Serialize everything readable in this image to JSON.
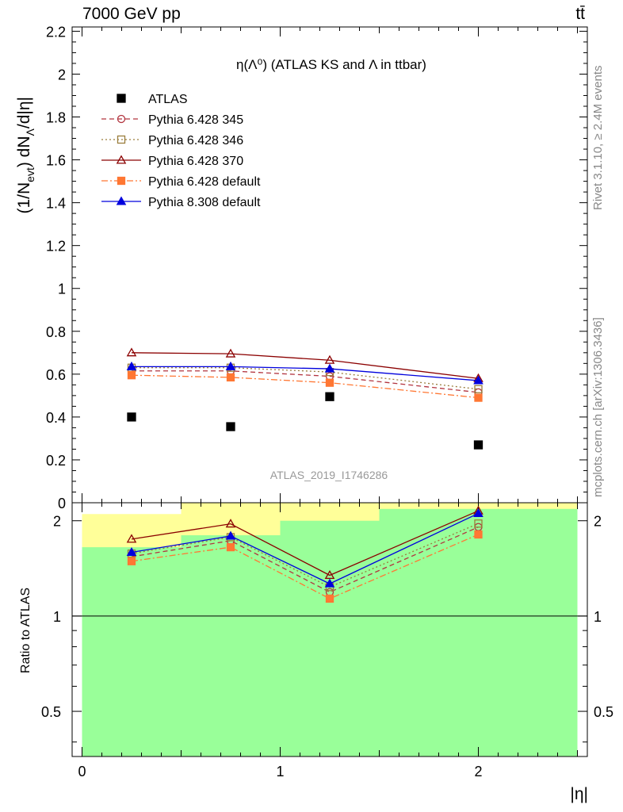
{
  "header": {
    "left": "7000 GeV pp",
    "right": "tt̄"
  },
  "side": {
    "rivet": "Rivet 3.1.10, ≥ 2.4M events",
    "source": "mcplots.cern.ch [arXiv:1306.3436]"
  },
  "chart_data": [
    {
      "type": "scatter",
      "title": "η(Λ⁰) (ATLAS KS and Λ in ttbar)",
      "ylabel": "(1/N_evt) dN_Λ/d|η|",
      "xlabel": "",
      "watermark": "ATLAS_2019_I1746286",
      "xlim": [
        -0.05,
        2.55
      ],
      "ylim": [
        0,
        2.22
      ],
      "yticks": [
        "0",
        "0.2",
        "0.4",
        "0.6",
        "0.8",
        "1",
        "1.2",
        "1.4",
        "1.6",
        "1.8",
        "2",
        "2.2"
      ],
      "x": [
        0.25,
        0.75,
        1.25,
        2.0
      ],
      "series": [
        {
          "name": "ATLAS",
          "values": [
            0.4,
            0.355,
            0.495,
            0.27
          ],
          "color": "#000000",
          "marker": "square-filled",
          "line": "none"
        },
        {
          "name": "Pythia 6.428 345",
          "values": [
            0.615,
            0.615,
            0.59,
            0.515
          ],
          "color": "#b2343f",
          "marker": "circle-open",
          "line": "dashed"
        },
        {
          "name": "Pythia 6.428 346",
          "values": [
            0.63,
            0.63,
            0.61,
            0.53
          ],
          "color": "#9a7d3c",
          "marker": "square-open",
          "line": "dotted"
        },
        {
          "name": "Pythia 6.428 370",
          "values": [
            0.7,
            0.695,
            0.665,
            0.58
          ],
          "color": "#8b0000",
          "marker": "triangle-open",
          "line": "solid"
        },
        {
          "name": "Pythia 6.428 default",
          "values": [
            0.595,
            0.585,
            0.56,
            0.49
          ],
          "color": "#ff7733",
          "marker": "square-filled",
          "line": "dashdot"
        },
        {
          "name": "Pythia 8.308 default",
          "values": [
            0.635,
            0.635,
            0.625,
            0.57
          ],
          "color": "#0000dd",
          "marker": "triangle-filled",
          "line": "solid"
        }
      ],
      "legend_position": "top-left"
    },
    {
      "type": "line",
      "ylabel": "Ratio to ATLAS",
      "xlabel": "|η|",
      "scale": "log",
      "xlim": [
        -0.05,
        2.55
      ],
      "ylim": [
        0.36,
        2.28
      ],
      "xticks": [
        "0",
        "1",
        "2"
      ],
      "yticks": [
        "0.5",
        "1",
        "2"
      ],
      "x": [
        0.25,
        0.75,
        1.25,
        2.0
      ],
      "bands": {
        "edges": [
          0,
          0.5,
          1.0,
          1.5,
          2.5
        ],
        "yellow_low": [
          0.405,
          0.36,
          0.36,
          0.36
        ],
        "yellow_high": [
          2.1,
          2.28,
          2.28,
          2.28
        ],
        "green_low": [
          0.36,
          0.36,
          0.36,
          0.36
        ],
        "green_high": [
          1.65,
          1.8,
          2.0,
          2.18
        ],
        "yellow_color": "#ffff99",
        "green_color": "#99ff99"
      },
      "series": [
        {
          "name": "Pythia 6.428 345",
          "values": [
            1.54,
            1.73,
            1.19,
            1.91
          ]
        },
        {
          "name": "Pythia 6.428 346",
          "values": [
            1.575,
            1.775,
            1.235,
            1.96
          ]
        },
        {
          "name": "Pythia 6.428 370",
          "values": [
            1.75,
            1.955,
            1.345,
            2.15
          ]
        },
        {
          "name": "Pythia 6.428 default",
          "values": [
            1.49,
            1.65,
            1.135,
            1.81
          ]
        },
        {
          "name": "Pythia 8.308 default",
          "values": [
            1.59,
            1.79,
            1.265,
            2.11
          ]
        }
      ]
    }
  ]
}
